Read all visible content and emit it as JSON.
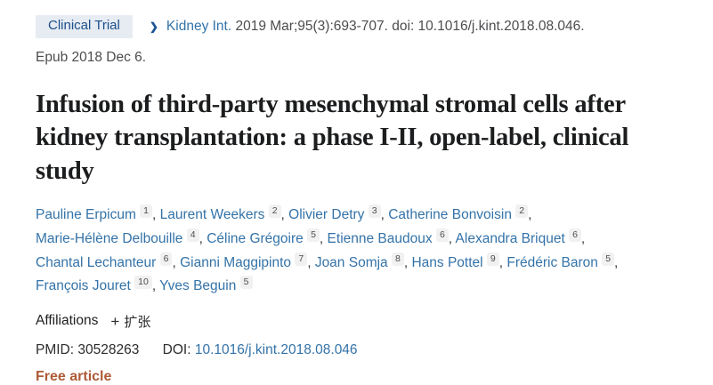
{
  "badge": {
    "label": "Clinical Trial"
  },
  "citation": {
    "journal": "Kidney Int.",
    "details": "2019 Mar;95(3):693-707. doi: 10.1016/j.kint.2018.08.046.",
    "epub": "Epub 2018 Dec 6."
  },
  "title": "Infusion of third-party mesenchymal stromal cells after kidney transplantation: a phase I-II, open-label, clinical study",
  "authors": [
    {
      "name": "Pauline Erpicum",
      "sup": "1"
    },
    {
      "name": "Laurent Weekers",
      "sup": "2"
    },
    {
      "name": "Olivier Detry",
      "sup": "3"
    },
    {
      "name": "Catherine Bonvoisin",
      "sup": "2"
    },
    {
      "name": "Marie-Hélène Delbouille",
      "sup": "4"
    },
    {
      "name": "Céline Grégoire",
      "sup": "5"
    },
    {
      "name": "Etienne Baudoux",
      "sup": "6"
    },
    {
      "name": "Alexandra Briquet",
      "sup": "6"
    },
    {
      "name": "Chantal Lechanteur",
      "sup": "6"
    },
    {
      "name": "Gianni Maggipinto",
      "sup": "7"
    },
    {
      "name": "Joan Somja",
      "sup": "8"
    },
    {
      "name": "Hans Pottel",
      "sup": "9"
    },
    {
      "name": "Frédéric Baron",
      "sup": "5"
    },
    {
      "name": "François Jouret",
      "sup": "10"
    },
    {
      "name": "Yves Beguin",
      "sup": "5"
    }
  ],
  "affiliations": {
    "label": "Affiliations",
    "expand_icon": "+",
    "expand_label": "扩张"
  },
  "identifiers": {
    "pmid_label": "PMID:",
    "pmid": "30528263",
    "doi_label": "DOI:",
    "doi": "10.1016/j.kint.2018.08.046"
  },
  "free_article": "Free article",
  "icons": {
    "chevron_right": "❯"
  },
  "colors": {
    "link_blue": "#3473a8",
    "badge_bg": "#e7ecf3",
    "badge_text": "#1b4e8a",
    "free_article_orange": "#ad5a35"
  }
}
